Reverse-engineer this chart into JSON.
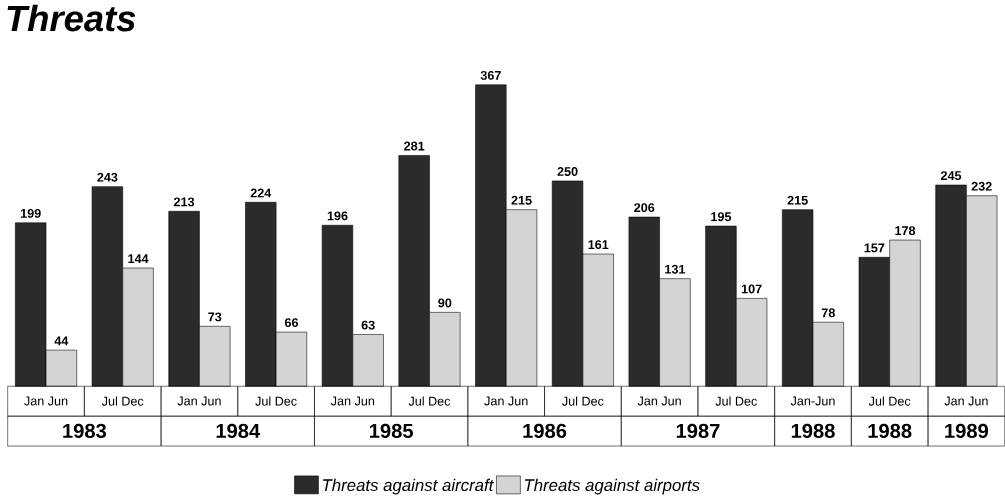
{
  "chart_data": {
    "type": "bar",
    "title": "Threats",
    "categories": [
      "Jan Jun",
      "Jul Dec",
      "Jan Jun",
      "Jul Dec",
      "Jan Jun",
      "Jul Dec",
      "Jan Jun",
      "Jul Dec",
      "Jan Jun",
      "Jul Dec",
      "Jan-Jun",
      "Jul Dec",
      "Jan Jun"
    ],
    "series": [
      {
        "name": "Threats against aircraft",
        "color": "#2b2b2b",
        "values": [
          199,
          243,
          213,
          224,
          196,
          281,
          367,
          250,
          206,
          195,
          215,
          157,
          245
        ]
      },
      {
        "name": "Threats against airports",
        "color": "#d4d4d4",
        "values": [
          44,
          144,
          73,
          66,
          63,
          90,
          215,
          161,
          131,
          107,
          78,
          178,
          232
        ]
      }
    ],
    "annotations": [
      "1983",
      "1984",
      "1985",
      "1986",
      "1987",
      "1988",
      "1988",
      "1989"
    ],
    "data_labels": true,
    "legend": "bottom"
  }
}
